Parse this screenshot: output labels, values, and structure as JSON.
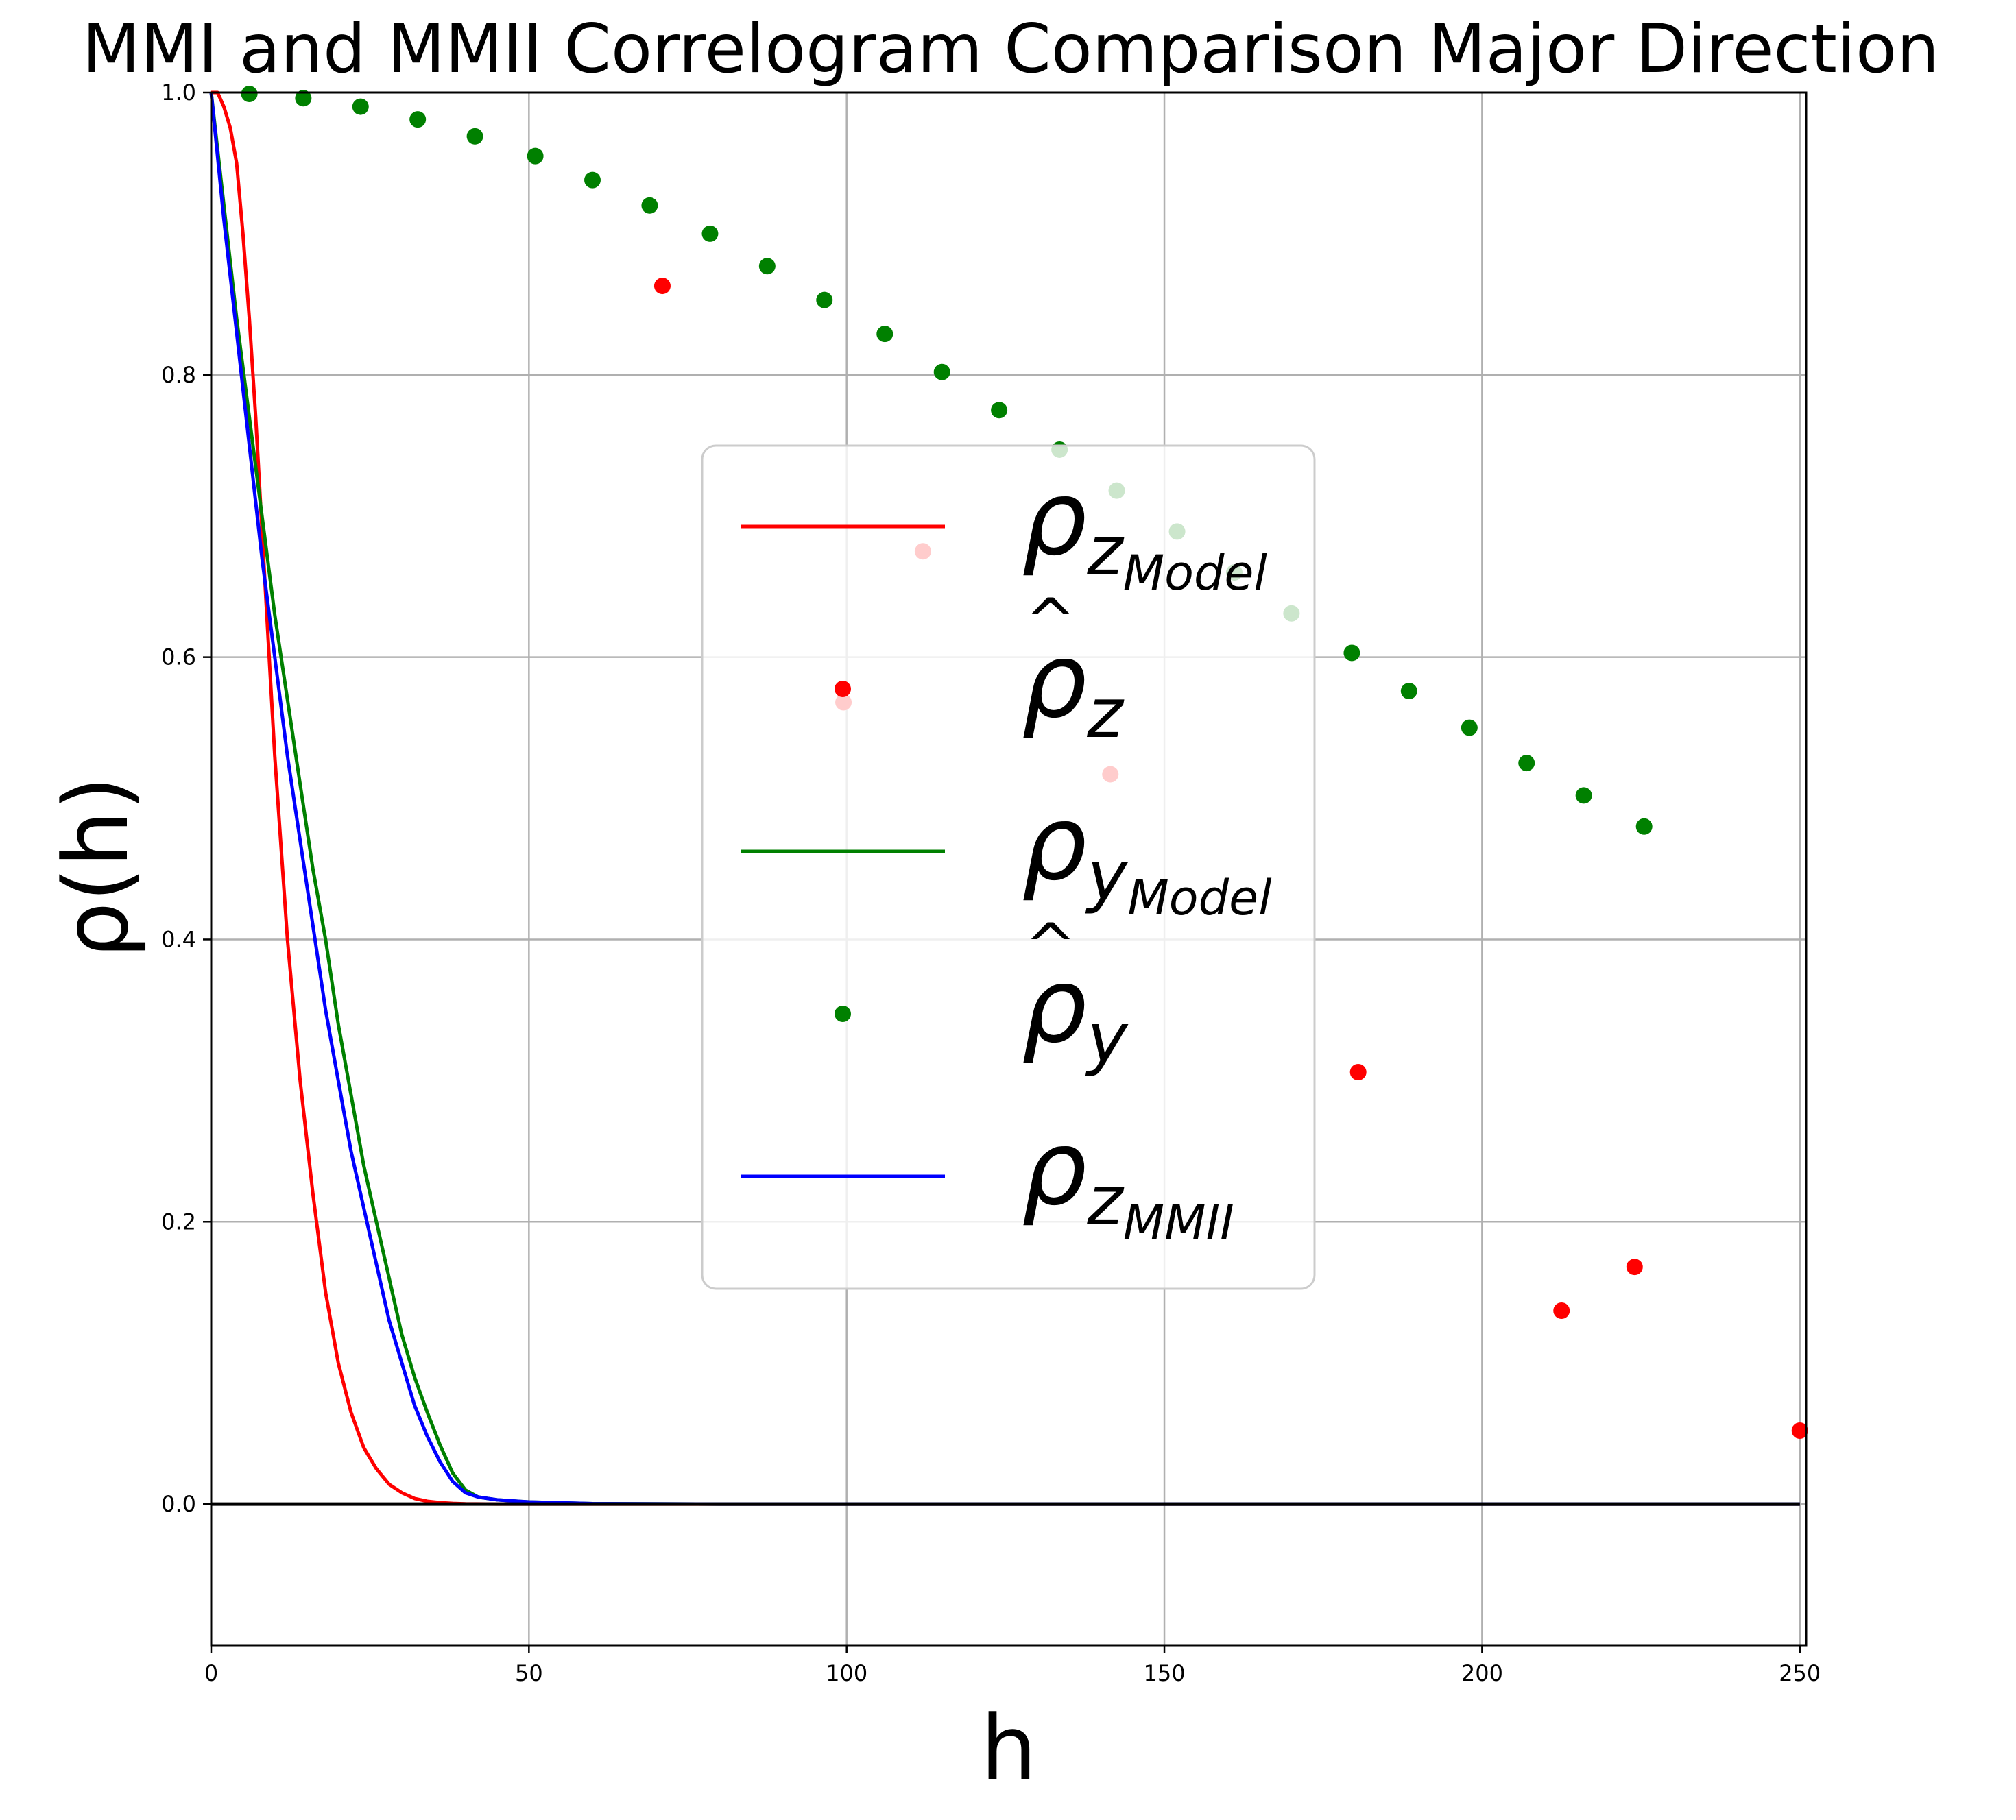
{
  "chart_data": {
    "type": "scatter",
    "title": "MMI and MMII Correlogram Comparison Major Direction",
    "xlabel": "h",
    "ylabel": "ρ(h)",
    "xlim": [
      0,
      251
    ],
    "ylim": [
      -0.1,
      1.0
    ],
    "x_ticks": [
      "0",
      "50",
      "100",
      "150",
      "200",
      "250"
    ],
    "y_ticks": [
      "0.0",
      "0.2",
      "0.4",
      "0.6",
      "0.8",
      "1.0"
    ],
    "x_tick_values": [
      0,
      50,
      100,
      150,
      200,
      250
    ],
    "y_tick_values": [
      0.0,
      0.2,
      0.4,
      0.6,
      0.8,
      1.0
    ],
    "grid": true,
    "legend_position": "center",
    "series": [
      {
        "name": "ρzModel",
        "legend_main": "ρ",
        "legend_sub": "z",
        "legend_subsub": "Model",
        "kind": "line",
        "color": "#ff0000",
        "x": [
          0,
          1,
          2,
          3,
          4,
          5,
          6,
          7,
          8,
          9,
          10,
          12,
          14,
          16,
          18,
          20,
          22,
          24,
          26,
          28,
          30,
          32,
          34,
          36,
          38,
          40,
          45,
          50,
          60,
          80,
          250
        ],
        "y": [
          1.0,
          1.0,
          0.99,
          0.975,
          0.95,
          0.9,
          0.84,
          0.77,
          0.69,
          0.61,
          0.53,
          0.4,
          0.3,
          0.22,
          0.15,
          0.1,
          0.065,
          0.04,
          0.025,
          0.014,
          0.008,
          0.004,
          0.002,
          0.001,
          0.0005,
          0.0002,
          0.0,
          0.0,
          0.0,
          0.0,
          0.0
        ]
      },
      {
        "name": "ρ̂z",
        "legend_main": "ρ",
        "legend_sub": "z",
        "legend_subsub": "",
        "legend_hat": true,
        "kind": "points",
        "color": "#ff0000",
        "x": [
          71,
          99.5,
          112,
          141.5,
          180.5,
          212.5,
          224,
          250
        ],
        "y": [
          0.863,
          0.568,
          0.675,
          0.517,
          0.306,
          0.137,
          0.168,
          0.052
        ]
      },
      {
        "name": "ρyModel",
        "legend_main": "ρ",
        "legend_sub": "y",
        "legend_subsub": "Model",
        "kind": "line",
        "color": "#008000",
        "x": [
          0,
          2,
          4,
          6,
          8,
          10,
          12,
          14,
          16,
          18,
          20,
          22,
          24,
          26,
          28,
          30,
          32,
          34,
          36,
          38,
          40,
          42,
          45,
          50,
          60,
          80,
          250
        ],
        "y": [
          1.0,
          0.92,
          0.84,
          0.77,
          0.7,
          0.63,
          0.57,
          0.51,
          0.45,
          0.4,
          0.34,
          0.29,
          0.24,
          0.2,
          0.16,
          0.12,
          0.09,
          0.065,
          0.042,
          0.022,
          0.01,
          0.005,
          0.003,
          0.0015,
          0.0003,
          0.0,
          0.0
        ]
      },
      {
        "name": "ρ̂y",
        "legend_main": "ρ",
        "legend_sub": "y",
        "legend_subsub": "",
        "legend_hat": true,
        "kind": "points",
        "color": "#008000",
        "x": [
          6,
          14.5,
          23.5,
          32.5,
          41.5,
          51,
          60,
          69,
          78.5,
          87.5,
          96.5,
          106,
          115,
          124,
          133.5,
          142.5,
          152,
          161,
          170,
          179.5,
          188.5,
          198,
          207,
          216,
          225.5
        ],
        "y": [
          0.999,
          0.996,
          0.99,
          0.981,
          0.969,
          0.955,
          0.938,
          0.92,
          0.9,
          0.877,
          0.853,
          0.829,
          0.802,
          0.775,
          0.747,
          0.718,
          0.689,
          0.66,
          0.631,
          0.603,
          0.576,
          0.55,
          0.525,
          0.502,
          0.48
        ]
      },
      {
        "name": "ρzMMII",
        "legend_main": "ρ",
        "legend_sub": "z",
        "legend_subsub": "MMII",
        "kind": "line",
        "color": "#0000ff",
        "x": [
          0,
          2,
          4,
          6,
          8,
          10,
          12,
          14,
          16,
          18,
          20,
          22,
          24,
          26,
          28,
          30,
          32,
          34,
          36,
          38,
          40,
          42,
          45,
          50,
          60,
          80,
          250
        ],
        "y": [
          1.0,
          0.91,
          0.83,
          0.75,
          0.67,
          0.6,
          0.53,
          0.47,
          0.41,
          0.35,
          0.3,
          0.25,
          0.21,
          0.17,
          0.13,
          0.1,
          0.07,
          0.048,
          0.03,
          0.016,
          0.008,
          0.005,
          0.003,
          0.0015,
          0.0003,
          0.0,
          0.0
        ]
      },
      {
        "name": "zero line",
        "kind": "hline",
        "color": "#000000",
        "x": [
          0,
          250
        ],
        "y": [
          0.0,
          0.0
        ]
      }
    ]
  }
}
